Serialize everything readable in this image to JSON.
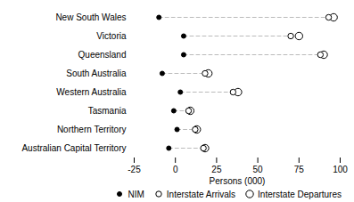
{
  "chart_data": {
    "type": "dot_plot",
    "categories": [
      "New South Wales",
      "Victoria",
      "Queensland",
      "South Australia",
      "Western Australia",
      "Tasmania",
      "Northern Territory",
      "Australian Capital Territory"
    ],
    "series": [
      {
        "name": "NIM",
        "color": "#000000",
        "marker": "filled_circle",
        "values": [
          -10,
          5,
          5,
          -8,
          3,
          -1,
          1,
          -4
        ]
      },
      {
        "name": "Interstate Arrivals",
        "color": "#000000",
        "marker": "open_circle",
        "values": [
          93,
          70,
          88,
          18,
          35,
          8,
          12,
          17
        ]
      },
      {
        "name": "Interstate Departures",
        "color": "#000000",
        "marker": "open_circle",
        "values": [
          96,
          75,
          90,
          20,
          38,
          9,
          13,
          18
        ]
      }
    ],
    "xlabel": "Persons (000)",
    "xlim": [
      -25,
      100
    ],
    "xticks": [
      -25,
      0,
      25,
      50,
      75,
      100
    ],
    "orientation": "horizontal",
    "grid": false,
    "legend": "lower right"
  }
}
